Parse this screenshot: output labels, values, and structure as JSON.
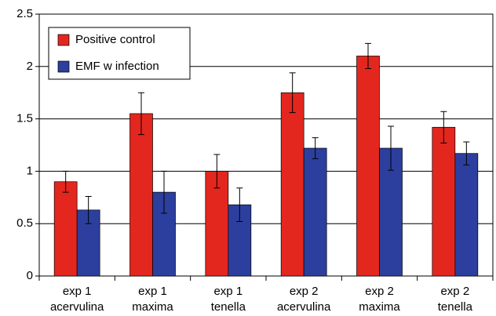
{
  "chart_data": {
    "type": "bar",
    "categories": [
      [
        "exp 1",
        "acervulina"
      ],
      [
        "exp 1",
        "maxima"
      ],
      [
        "exp 1",
        "tenella"
      ],
      [
        "exp 2",
        "acervulina"
      ],
      [
        "exp 2",
        "maxima"
      ],
      [
        "exp 2",
        "tenella"
      ]
    ],
    "series": [
      {
        "name": "Positive control",
        "color": "#e3271f",
        "values": [
          0.9,
          1.55,
          1.0,
          1.75,
          2.1,
          1.42
        ],
        "errors": [
          0.1,
          0.2,
          0.16,
          0.19,
          0.12,
          0.15
        ]
      },
      {
        "name": "EMF w infection",
        "color": "#2c3f9e",
        "values": [
          0.63,
          0.8,
          0.68,
          1.22,
          1.22,
          1.17
        ],
        "errors": [
          0.13,
          0.2,
          0.16,
          0.1,
          0.21,
          0.11
        ]
      }
    ],
    "ylim": [
      0,
      2.5
    ],
    "yticks": [
      0,
      0.5,
      1,
      1.5,
      2,
      2.5
    ],
    "grid": true,
    "legend": "top-left"
  }
}
